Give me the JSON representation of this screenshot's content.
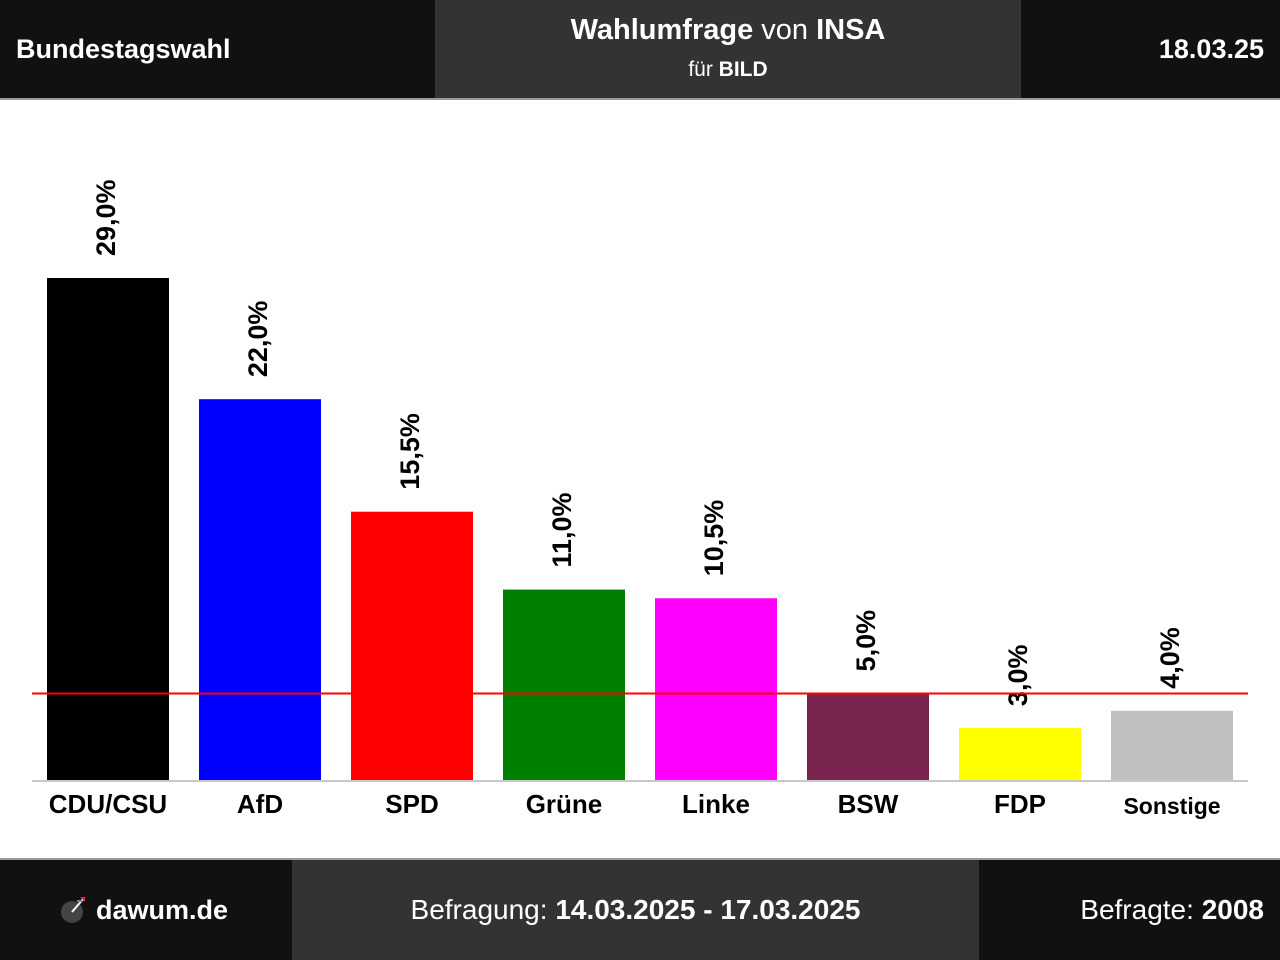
{
  "header": {
    "left_title": "Bundestagswahl",
    "center_line1_a": "Wahlumfrage",
    "center_line1_b": "von",
    "center_line1_c": "INSA",
    "center_line2_a": "für",
    "center_line2_b": "BILD",
    "date": "18.03.25"
  },
  "footer": {
    "brand": "dawum.de",
    "survey_label": "Befragung:",
    "survey_period": "14.03.2025 - 17.03.2025",
    "respondents_label": "Befragte:",
    "respondents_value": "2008"
  },
  "chart_data": {
    "type": "bar",
    "categories": [
      "CDU/CSU",
      "AfD",
      "SPD",
      "Grüne",
      "Linke",
      "BSW",
      "FDP",
      "Sonstige"
    ],
    "values": [
      29.0,
      22.0,
      15.5,
      11.0,
      10.5,
      5.0,
      3.0,
      4.0
    ],
    "value_labels": [
      "29,0%",
      "22,0%",
      "15,5%",
      "11,0%",
      "10,5%",
      "5,0%",
      "3,0%",
      "4,0%"
    ],
    "colors": [
      "#000000",
      "#0000ff",
      "#ff0000",
      "#008000",
      "#ff00ff",
      "#7a2450",
      "#ffff00",
      "#c0c0c0"
    ],
    "threshold": 5.0,
    "threshold_color": "#ff0000",
    "ylim": [
      0,
      29.0
    ],
    "grid": false
  }
}
